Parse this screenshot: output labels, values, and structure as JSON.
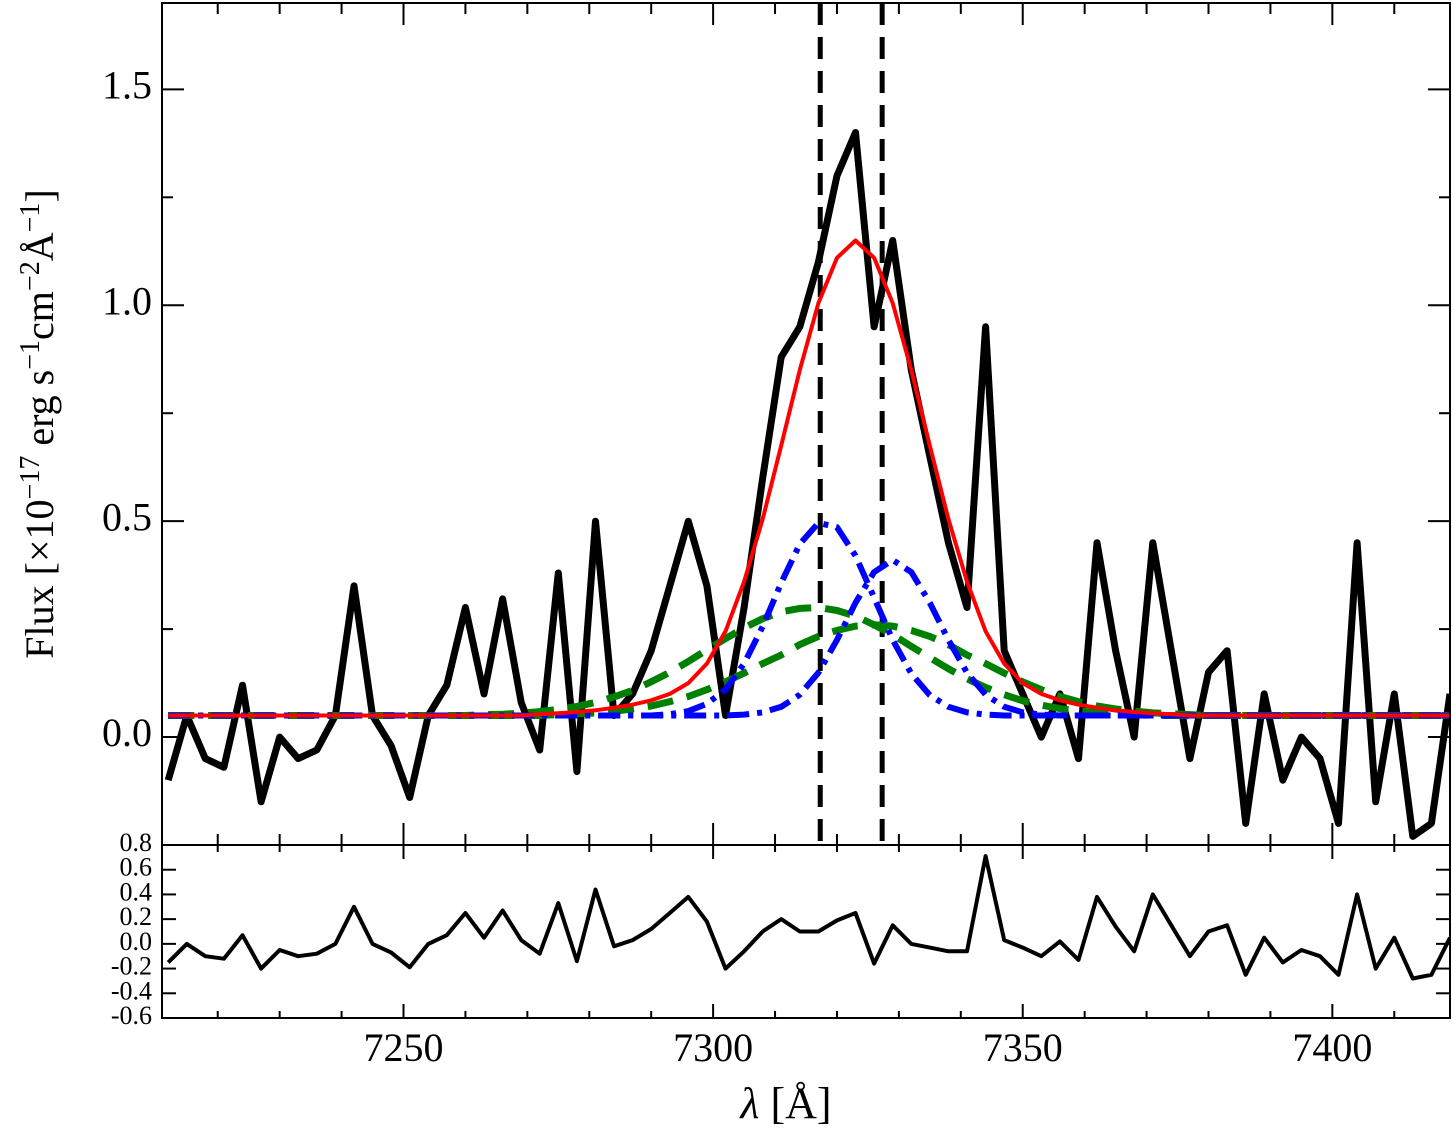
{
  "chart_data": [
    {
      "type": "line",
      "ylabel": [
        "Flux [×10",
        "−17",
        " erg s",
        "−1",
        "cm",
        "−2",
        "Å",
        "−1",
        "]"
      ],
      "xlim": [
        7211,
        7419
      ],
      "ylim": [
        -0.25,
        1.7
      ],
      "xticks": [
        7250,
        7300,
        7350,
        7400
      ],
      "xticks_minor": [
        7220,
        7230,
        7240,
        7260,
        7270,
        7280,
        7290,
        7310,
        7320,
        7330,
        7340,
        7360,
        7370,
        7380,
        7390,
        7410
      ],
      "yticks": [
        {
          "value": 0,
          "label": "0.0"
        },
        {
          "value": 0.5,
          "label": "0.5"
        },
        {
          "value": 1,
          "label": "1.0"
        },
        {
          "value": 1.5,
          "label": "1.5"
        }
      ],
      "yticks_minor": [
        -0.25,
        0.25,
        0.75,
        1.25
      ],
      "vlines": [
        7317.3,
        7327.3
      ],
      "x": [
        7212,
        7215,
        7218,
        7221,
        7224,
        7227,
        7230,
        7233,
        7236,
        7239,
        7242,
        7245,
        7248,
        7251,
        7254,
        7257,
        7260,
        7263,
        7266,
        7269,
        7272,
        7275,
        7278,
        7281,
        7284,
        7287,
        7290,
        7293,
        7296,
        7299,
        7302,
        7305,
        7308,
        7311,
        7314,
        7317,
        7320,
        7323,
        7326,
        7329,
        7332,
        7335,
        7338,
        7341,
        7344,
        7347,
        7350,
        7353,
        7356,
        7359,
        7362,
        7365,
        7368,
        7371,
        7374,
        7377,
        7380,
        7383,
        7386,
        7389,
        7392,
        7395,
        7398,
        7401,
        7404,
        7407,
        7410,
        7413,
        7416,
        7419
      ],
      "series": [
        {
          "color": "#000000",
          "style": "solid",
          "width": 7,
          "values": [
            -0.1,
            0.05,
            -0.05,
            -0.07,
            0.12,
            -0.15,
            0.0,
            -0.05,
            -0.03,
            0.05,
            0.35,
            0.05,
            -0.02,
            -0.14,
            0.05,
            0.12,
            0.3,
            0.1,
            0.32,
            0.08,
            -0.03,
            0.38,
            -0.08,
            0.5,
            0.05,
            0.1,
            0.2,
            0.35,
            0.5,
            0.35,
            0.05,
            0.3,
            0.6,
            0.88,
            0.95,
            1.1,
            1.3,
            1.4,
            0.95,
            1.15,
            0.85,
            0.65,
            0.45,
            0.3,
            0.95,
            0.2,
            0.1,
            0.0,
            0.1,
            -0.05,
            0.45,
            0.2,
            0.0,
            0.45,
            0.2,
            -0.05,
            0.15,
            0.2,
            -0.2,
            0.1,
            -0.1,
            0.0,
            -0.05,
            -0.2,
            0.45,
            -0.15,
            0.1,
            -0.23,
            -0.2,
            0.1
          ]
        },
        {
          "color": "#008000",
          "style": "dashed",
          "width": 7,
          "values": [
            0.05,
            0.05,
            0.05,
            0.05,
            0.05,
            0.05,
            0.05,
            0.05,
            0.05,
            0.05,
            0.05,
            0.05,
            0.05,
            0.05,
            0.05,
            0.05,
            0.05,
            0.052,
            0.053,
            0.055,
            0.059,
            0.064,
            0.071,
            0.08,
            0.093,
            0.108,
            0.128,
            0.15,
            0.175,
            0.202,
            0.228,
            0.253,
            0.274,
            0.29,
            0.298,
            0.3,
            0.293,
            0.28,
            0.26,
            0.237,
            0.21,
            0.184,
            0.158,
            0.135,
            0.115,
            0.098,
            0.084,
            0.074,
            0.066,
            0.06,
            0.057,
            0.054,
            0.052,
            0.05,
            0.05,
            0.05,
            0.05,
            0.05,
            0.05,
            0.05,
            0.05,
            0.05,
            0.05,
            0.05,
            0.05,
            0.05,
            0.05,
            0.05,
            0.05,
            0.05
          ]
        },
        {
          "color": "#008000",
          "style": "dashed",
          "width": 7,
          "values": [
            0.05,
            0.05,
            0.05,
            0.05,
            0.05,
            0.05,
            0.05,
            0.05,
            0.05,
            0.05,
            0.05,
            0.05,
            0.05,
            0.05,
            0.05,
            0.05,
            0.05,
            0.05,
            0.05,
            0.05,
            0.05,
            0.052,
            0.054,
            0.056,
            0.06,
            0.065,
            0.072,
            0.082,
            0.094,
            0.11,
            0.128,
            0.148,
            0.17,
            0.19,
            0.214,
            0.233,
            0.247,
            0.257,
            0.26,
            0.257,
            0.247,
            0.233,
            0.214,
            0.19,
            0.17,
            0.148,
            0.128,
            0.11,
            0.094,
            0.082,
            0.072,
            0.065,
            0.06,
            0.056,
            0.054,
            0.052,
            0.05,
            0.05,
            0.05,
            0.05,
            0.05,
            0.05,
            0.05,
            0.05,
            0.05,
            0.05,
            0.05,
            0.05,
            0.05,
            0.05
          ]
        },
        {
          "color": "#0000ff",
          "style": "dashdot",
          "width": 6,
          "values": [
            0.05,
            0.05,
            0.05,
            0.05,
            0.05,
            0.05,
            0.05,
            0.05,
            0.05,
            0.05,
            0.05,
            0.05,
            0.05,
            0.05,
            0.05,
            0.05,
            0.05,
            0.05,
            0.05,
            0.05,
            0.05,
            0.05,
            0.05,
            0.05,
            0.05,
            0.05,
            0.05,
            0.053,
            0.06,
            0.077,
            0.11,
            0.17,
            0.256,
            0.357,
            0.447,
            0.496,
            0.486,
            0.42,
            0.323,
            0.225,
            0.147,
            0.097,
            0.07,
            0.057,
            0.052,
            0.05,
            0.05,
            0.05,
            0.05,
            0.05,
            0.05,
            0.05,
            0.05,
            0.05,
            0.05,
            0.05,
            0.05,
            0.05,
            0.05,
            0.05,
            0.05,
            0.05,
            0.05,
            0.05,
            0.05,
            0.05,
            0.05,
            0.05,
            0.05,
            0.05
          ]
        },
        {
          "color": "#0000ff",
          "style": "dashdot",
          "width": 6,
          "values": [
            0.05,
            0.05,
            0.05,
            0.05,
            0.05,
            0.05,
            0.05,
            0.05,
            0.05,
            0.05,
            0.05,
            0.05,
            0.05,
            0.05,
            0.05,
            0.05,
            0.05,
            0.05,
            0.05,
            0.05,
            0.05,
            0.05,
            0.05,
            0.05,
            0.05,
            0.05,
            0.05,
            0.05,
            0.05,
            0.05,
            0.05,
            0.052,
            0.057,
            0.07,
            0.098,
            0.149,
            0.225,
            0.311,
            0.382,
            0.41,
            0.382,
            0.311,
            0.225,
            0.149,
            0.098,
            0.07,
            0.057,
            0.052,
            0.05,
            0.05,
            0.05,
            0.05,
            0.05,
            0.05,
            0.05,
            0.05,
            0.05,
            0.05,
            0.05,
            0.05,
            0.05,
            0.05,
            0.05,
            0.05,
            0.05,
            0.05,
            0.05,
            0.05,
            0.05,
            0.05
          ]
        },
        {
          "color": "#ff0000",
          "style": "solid",
          "width": 4,
          "values": [
            0.05,
            0.05,
            0.05,
            0.05,
            0.05,
            0.05,
            0.05,
            0.05,
            0.05,
            0.05,
            0.05,
            0.05,
            0.05,
            0.05,
            0.05,
            0.05,
            0.05,
            0.05,
            0.05,
            0.05,
            0.053,
            0.055,
            0.058,
            0.062,
            0.068,
            0.075,
            0.085,
            0.1,
            0.125,
            0.17,
            0.245,
            0.36,
            0.505,
            0.675,
            0.85,
            1.005,
            1.11,
            1.15,
            1.11,
            1.005,
            0.85,
            0.675,
            0.505,
            0.36,
            0.245,
            0.17,
            0.125,
            0.1,
            0.085,
            0.075,
            0.068,
            0.062,
            0.058,
            0.055,
            0.053,
            0.05,
            0.05,
            0.05,
            0.05,
            0.05,
            0.05,
            0.05,
            0.05,
            0.05,
            0.05,
            0.05,
            0.05,
            0.05,
            0.05,
            0.05
          ]
        }
      ]
    },
    {
      "type": "line",
      "xlabel": [
        "λ",
        " [Å]"
      ],
      "xlim": [
        7211,
        7419
      ],
      "ylim": [
        -0.6,
        0.8
      ],
      "xticks": [
        7250,
        7300,
        7350,
        7400
      ],
      "xticks_minor": [
        7220,
        7230,
        7240,
        7260,
        7270,
        7280,
        7290,
        7310,
        7320,
        7330,
        7340,
        7360,
        7370,
        7380,
        7390,
        7410
      ],
      "yticks": [
        {
          "value": 0.8,
          "label": "0.8"
        },
        {
          "value": 0.6,
          "label": "0.6"
        },
        {
          "value": 0.4,
          "label": "0.4"
        },
        {
          "value": 0.2,
          "label": "0.2"
        },
        {
          "value": 0,
          "label": "0.0"
        },
        {
          "value": -0.2,
          "label": "-0.2"
        },
        {
          "value": -0.4,
          "label": "-0.4"
        },
        {
          "value": -0.6,
          "label": "-0.6"
        }
      ],
      "x": [
        7212,
        7215,
        7218,
        7221,
        7224,
        7227,
        7230,
        7233,
        7236,
        7239,
        7242,
        7245,
        7248,
        7251,
        7254,
        7257,
        7260,
        7263,
        7266,
        7269,
        7272,
        7275,
        7278,
        7281,
        7284,
        7287,
        7290,
        7293,
        7296,
        7299,
        7302,
        7305,
        7308,
        7311,
        7314,
        7317,
        7320,
        7323,
        7326,
        7329,
        7332,
        7335,
        7338,
        7341,
        7344,
        7347,
        7350,
        7353,
        7356,
        7359,
        7362,
        7365,
        7368,
        7371,
        7374,
        7377,
        7380,
        7383,
        7386,
        7389,
        7392,
        7395,
        7398,
        7401,
        7404,
        7407,
        7410,
        7413,
        7416,
        7419
      ],
      "series": [
        {
          "color": "#000000",
          "style": "solid",
          "width": 4,
          "values": [
            -0.15,
            0.0,
            -0.1,
            -0.12,
            0.07,
            -0.2,
            -0.05,
            -0.1,
            -0.08,
            0.0,
            0.3,
            0.0,
            -0.07,
            -0.19,
            0.0,
            0.07,
            0.25,
            0.05,
            0.27,
            0.03,
            -0.08,
            0.33,
            -0.14,
            0.44,
            -0.02,
            0.03,
            0.12,
            0.25,
            0.38,
            0.18,
            -0.2,
            -0.06,
            0.1,
            0.2,
            0.1,
            0.1,
            0.19,
            0.25,
            -0.16,
            0.15,
            0.0,
            -0.03,
            -0.06,
            -0.06,
            0.71,
            0.03,
            -0.03,
            -0.1,
            0.02,
            -0.13,
            0.38,
            0.14,
            -0.06,
            0.4,
            0.15,
            -0.1,
            0.1,
            0.15,
            -0.25,
            0.05,
            -0.15,
            -0.05,
            -0.1,
            -0.25,
            0.4,
            -0.2,
            0.05,
            -0.28,
            -0.25,
            0.05
          ]
        }
      ]
    }
  ]
}
